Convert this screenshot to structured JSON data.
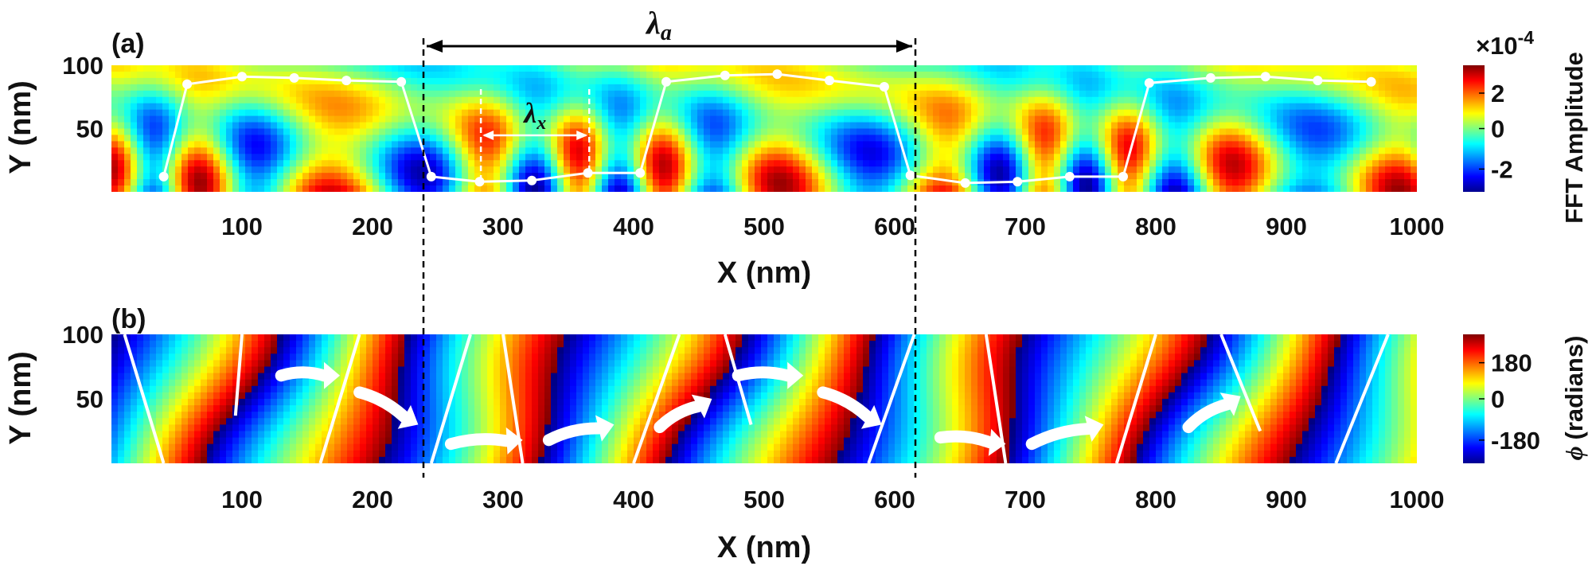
{
  "panels": [
    {
      "label": "(a)",
      "xlabel": "X (nm)",
      "ylabel": "Y (nm)",
      "xticks": [
        100,
        200,
        300,
        400,
        500,
        600,
        700,
        800,
        900,
        1000
      ],
      "yticks": [
        50,
        100
      ],
      "colorbar": {
        "label": "FFT Amplitude",
        "multiplier": "×10",
        "exponent": "-4",
        "ticks": [
          "2",
          "0",
          "-2"
        ]
      }
    },
    {
      "label": "(b)",
      "xlabel": "X (nm)",
      "ylabel": "Y (nm)",
      "xticks": [
        100,
        200,
        300,
        400,
        500,
        600,
        700,
        800,
        900,
        1000
      ],
      "yticks": [
        50,
        100
      ],
      "colorbar": {
        "label_symbol": "ϕ",
        "label": "(radians)",
        "ticks": [
          "180",
          "0",
          "-180"
        ]
      }
    }
  ],
  "annotations": {
    "lambda_a": "λ",
    "lambda_a_sub": "a",
    "lambda_x": "λ",
    "lambda_x_sub": "x"
  },
  "colors": {
    "colormap": [
      "#00008f",
      "#0000ff",
      "#00ffff",
      "#ffff00",
      "#ff0000",
      "#800000"
    ],
    "overlay": "#ffffff"
  },
  "chart_data": [
    {
      "type": "heatmap",
      "title": "",
      "xlabel": "X (nm)",
      "ylabel": "Y (nm)",
      "xlim": [
        0,
        1000
      ],
      "ylim": [
        0,
        100
      ],
      "colorbar_range": [
        -3,
        3
      ],
      "colorbar_unit": "×10^-4",
      "overlay_line": {
        "x": [
          40,
          58,
          100,
          140,
          180,
          222,
          245,
          282,
          322,
          365,
          405,
          425,
          470,
          510,
          550,
          592,
          612,
          654,
          694,
          734,
          775,
          795,
          842,
          884,
          924,
          965
        ],
        "y": [
          12,
          85,
          91,
          90,
          88,
          87,
          12,
          8,
          9,
          15,
          15,
          87,
          92,
          93,
          88,
          83,
          13,
          7,
          8,
          12,
          12,
          86,
          90,
          91,
          88,
          87
        ]
      },
      "markers": {
        "lambda_a_x": [
          240,
          612
        ],
        "lambda_x_x": [
          283,
          366
        ]
      }
    },
    {
      "type": "heatmap",
      "title": "",
      "xlabel": "X (nm)",
      "ylabel": "Y (nm)",
      "xlim": [
        0,
        1000
      ],
      "ylim": [
        0,
        100
      ],
      "colorbar_range": [
        -180,
        180
      ],
      "white_lines": [
        [
          [
            40,
            0
          ],
          [
            10,
            100
          ]
        ],
        [
          [
            95,
            37
          ],
          [
            100,
            100
          ]
        ],
        [
          [
            160,
            0
          ],
          [
            190,
            100
          ]
        ],
        [
          [
            245,
            0
          ],
          [
            275,
            100
          ]
        ],
        [
          [
            315,
            0
          ],
          [
            300,
            100
          ]
        ],
        [
          [
            400,
            0
          ],
          [
            435,
            100
          ]
        ],
        [
          [
            490,
            30
          ],
          [
            470,
            100
          ]
        ],
        [
          [
            580,
            0
          ],
          [
            615,
            100
          ]
        ],
        [
          [
            685,
            0
          ],
          [
            670,
            100
          ]
        ],
        [
          [
            770,
            0
          ],
          [
            800,
            100
          ]
        ],
        [
          [
            880,
            25
          ],
          [
            850,
            100
          ]
        ],
        [
          [
            938,
            0
          ],
          [
            978,
            100
          ]
        ]
      ],
      "arrows": [
        [
          [
            130,
            68
          ],
          [
            175,
            68
          ]
        ],
        [
          [
            190,
            55
          ],
          [
            235,
            30
          ]
        ],
        [
          [
            260,
            15
          ],
          [
            315,
            18
          ]
        ],
        [
          [
            335,
            18
          ],
          [
            385,
            30
          ]
        ],
        [
          [
            420,
            28
          ],
          [
            460,
            50
          ]
        ],
        [
          [
            480,
            68
          ],
          [
            530,
            68
          ]
        ],
        [
          [
            545,
            55
          ],
          [
            590,
            30
          ]
        ],
        [
          [
            635,
            20
          ],
          [
            685,
            15
          ]
        ],
        [
          [
            705,
            15
          ],
          [
            760,
            30
          ]
        ],
        [
          [
            825,
            28
          ],
          [
            865,
            52
          ]
        ]
      ]
    }
  ]
}
